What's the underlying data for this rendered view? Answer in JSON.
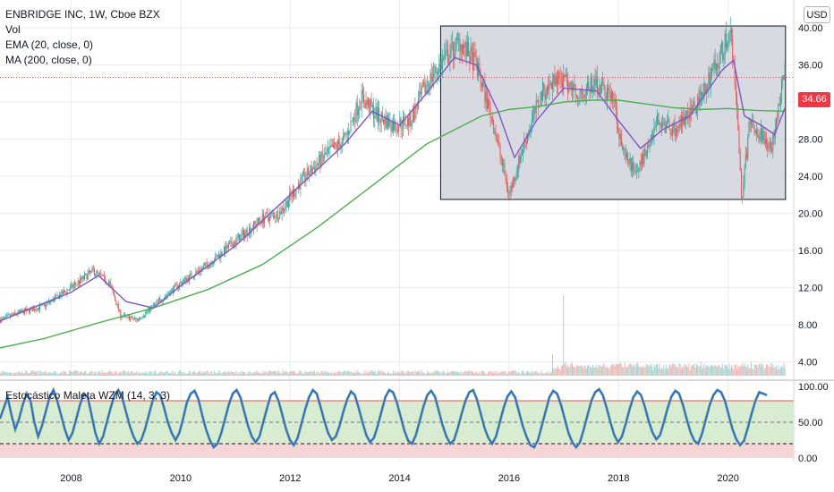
{
  "legend": {
    "title": "ENBRIDGE INC, 1W, Cboe BZX",
    "vol": "Vol",
    "ema": "EMA (20, close, 0)",
    "ma": "MA (200, close, 0)"
  },
  "oscillator": {
    "title": "Estocástico Maleta WZM (14, 3, 3)",
    "upper_level": 80,
    "lower_level": 20,
    "ticks": [
      "100.00",
      "50.00",
      "0.00"
    ],
    "series": [
      55,
      70,
      85,
      60,
      40,
      55,
      75,
      90,
      80,
      50,
      30,
      45,
      65,
      85,
      95,
      80,
      60,
      40,
      25,
      35,
      55,
      75,
      90,
      85,
      60,
      35,
      20,
      30,
      50,
      70,
      88,
      95,
      85,
      65,
      45,
      30,
      20,
      25,
      40,
      60,
      80,
      92,
      88,
      70,
      50,
      35,
      25,
      35,
      55,
      78,
      90,
      94,
      82,
      60,
      40,
      25,
      15,
      20,
      35,
      55,
      75,
      90,
      95,
      85,
      65,
      45,
      30,
      22,
      30,
      50,
      70,
      88,
      92,
      80,
      60,
      40,
      25,
      18,
      28,
      48,
      68,
      85,
      95,
      90,
      72,
      52,
      35,
      25,
      30,
      45,
      65,
      82,
      93,
      88,
      70,
      50,
      32,
      22,
      28,
      45,
      65,
      85,
      95,
      92,
      78,
      58,
      38,
      24,
      20,
      32,
      52,
      72,
      88,
      94,
      86,
      66,
      46,
      30,
      20,
      25,
      42,
      62,
      80,
      92,
      95,
      82,
      62,
      42,
      28,
      20,
      30,
      50,
      70,
      86,
      93,
      85,
      65,
      45,
      30,
      18,
      15,
      25,
      45,
      65,
      85,
      94,
      90,
      75,
      55,
      35,
      22,
      15,
      22,
      40,
      60,
      80,
      92,
      96,
      88,
      70,
      50,
      32,
      22,
      30,
      48,
      68,
      85,
      93,
      88,
      72,
      52,
      36,
      26,
      32,
      50,
      70,
      86,
      94,
      90,
      74,
      54,
      36,
      24,
      20,
      34,
      54,
      74,
      88,
      95,
      92,
      80,
      60,
      40,
      26,
      18,
      24,
      42,
      62,
      80,
      92,
      90,
      88
    ]
  },
  "axis": {
    "y_ticks": [
      "40.00",
      "36.00",
      "32.00",
      "28.00",
      "24.00",
      "20.00",
      "16.00",
      "12.00",
      "8.00",
      "4.00"
    ],
    "x_ticks": [
      "2008",
      "2010",
      "2012",
      "2014",
      "2016",
      "2018",
      "2020"
    ],
    "currency": "USD",
    "last_price": "34.66"
  },
  "chart_data": {
    "type": "candlestick",
    "symbol": "ENBRIDGE INC",
    "interval": "1W",
    "exchange": "Cboe BZX",
    "x_range": [
      2006.7,
      2021.2
    ],
    "y_range": [
      2.5,
      43
    ],
    "last_price": 34.66,
    "range_box": {
      "x": [
        2014.75,
        2021.05
      ],
      "y": [
        21.5,
        40.2
      ]
    },
    "price_path": [
      [
        2006.7,
        8.5
      ],
      [
        2007.0,
        9.2
      ],
      [
        2007.5,
        10.0
      ],
      [
        2008.0,
        12.0
      ],
      [
        2008.4,
        13.8
      ],
      [
        2008.7,
        12.5
      ],
      [
        2008.9,
        9.0
      ],
      [
        2009.2,
        8.5
      ],
      [
        2009.6,
        10.5
      ],
      [
        2010.0,
        12.5
      ],
      [
        2010.5,
        14.5
      ],
      [
        2011.0,
        17.0
      ],
      [
        2011.5,
        19.5
      ],
      [
        2011.8,
        20.0
      ],
      [
        2012.2,
        23.5
      ],
      [
        2012.6,
        26.0
      ],
      [
        2013.0,
        28.0
      ],
      [
        2013.3,
        32.5
      ],
      [
        2013.6,
        30.5
      ],
      [
        2013.9,
        29.5
      ],
      [
        2014.2,
        30.0
      ],
      [
        2014.5,
        34.0
      ],
      [
        2014.8,
        36.5
      ],
      [
        2015.1,
        38.5
      ],
      [
        2015.4,
        36.0
      ],
      [
        2015.7,
        30.0
      ],
      [
        2016.0,
        22.0
      ],
      [
        2016.3,
        28.0
      ],
      [
        2016.6,
        33.0
      ],
      [
        2016.9,
        34.5
      ],
      [
        2017.3,
        33.0
      ],
      [
        2017.6,
        34.0
      ],
      [
        2017.9,
        32.5
      ],
      [
        2018.1,
        26.0
      ],
      [
        2018.35,
        24.5
      ],
      [
        2018.7,
        30.0
      ],
      [
        2019.0,
        29.0
      ],
      [
        2019.3,
        30.5
      ],
      [
        2019.6,
        34.0
      ],
      [
        2019.9,
        37.5
      ],
      [
        2020.05,
        40.0
      ],
      [
        2020.15,
        32.0
      ],
      [
        2020.25,
        21.5
      ],
      [
        2020.4,
        30.0
      ],
      [
        2020.6,
        28.5
      ],
      [
        2020.8,
        27.0
      ],
      [
        2020.95,
        33.0
      ],
      [
        2021.05,
        35.5
      ]
    ],
    "ema20": [
      [
        2006.7,
        8.4
      ],
      [
        2008.0,
        11.5
      ],
      [
        2008.5,
        13.3
      ],
      [
        2009.0,
        10.5
      ],
      [
        2009.5,
        9.8
      ],
      [
        2010.0,
        12.2
      ],
      [
        2011.0,
        16.5
      ],
      [
        2012.0,
        22.0
      ],
      [
        2013.0,
        27.5
      ],
      [
        2013.5,
        31.0
      ],
      [
        2014.0,
        29.5
      ],
      [
        2014.5,
        33.0
      ],
      [
        2015.0,
        36.8
      ],
      [
        2015.4,
        36.0
      ],
      [
        2015.8,
        31.0
      ],
      [
        2016.1,
        26.0
      ],
      [
        2016.5,
        30.0
      ],
      [
        2017.0,
        33.5
      ],
      [
        2017.6,
        33.2
      ],
      [
        2018.0,
        30.0
      ],
      [
        2018.4,
        27.0
      ],
      [
        2018.8,
        29.0
      ],
      [
        2019.3,
        30.5
      ],
      [
        2019.9,
        35.5
      ],
      [
        2020.1,
        36.5
      ],
      [
        2020.3,
        30.5
      ],
      [
        2020.6,
        29.5
      ],
      [
        2020.85,
        28.5
      ],
      [
        2021.05,
        31.5
      ]
    ],
    "ma200": [
      [
        2006.7,
        5.5
      ],
      [
        2007.5,
        6.5
      ],
      [
        2008.5,
        8.2
      ],
      [
        2009.5,
        9.8
      ],
      [
        2010.5,
        11.8
      ],
      [
        2011.5,
        14.5
      ],
      [
        2012.5,
        18.5
      ],
      [
        2013.5,
        23.0
      ],
      [
        2014.5,
        27.5
      ],
      [
        2015.0,
        29.0
      ],
      [
        2015.5,
        30.5
      ],
      [
        2016.0,
        31.2
      ],
      [
        2016.5,
        31.5
      ],
      [
        2017.0,
        32.0
      ],
      [
        2017.5,
        32.2
      ],
      [
        2018.0,
        32.2
      ],
      [
        2018.5,
        31.8
      ],
      [
        2019.0,
        31.4
      ],
      [
        2019.5,
        31.2
      ],
      [
        2020.0,
        31.3
      ],
      [
        2020.5,
        31.1
      ],
      [
        2021.05,
        31.0
      ]
    ]
  },
  "colors": {
    "up": "#26a69a",
    "down": "#ef5350",
    "ema": "#7e57c2",
    "ma": "#4caf50",
    "osc_line": "#2962ff",
    "osc_fill": "#d7ecd0",
    "osc_low_fill": "#f6d5d7",
    "box_fill": "#d1d4dc",
    "grid": "#e9ecf2"
  }
}
